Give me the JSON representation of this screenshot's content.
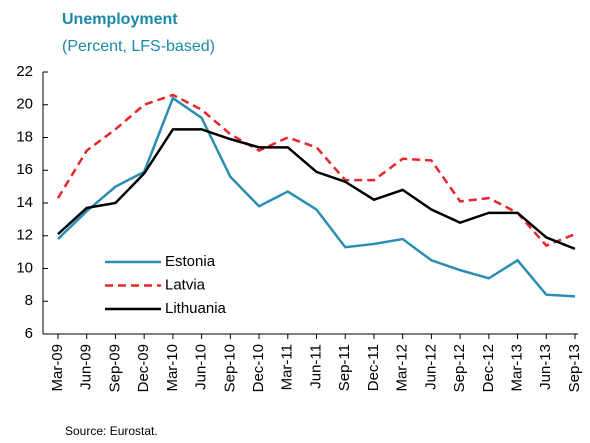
{
  "chart_data": {
    "type": "line",
    "title": "Unemployment",
    "subtitle": "(Percent, LFS-based)",
    "source": "Source: Eurostat.",
    "categories": [
      "Mar-09",
      "Jun-09",
      "Sep-09",
      "Dec-09",
      "Mar-10",
      "Jun-10",
      "Sep-10",
      "Dec-10",
      "Mar-11",
      "Jun-11",
      "Sep-11",
      "Dec-11",
      "Mar-12",
      "Jun-12",
      "Sep-12",
      "Dec-12",
      "Mar-13",
      "Jun-13",
      "Sep-13"
    ],
    "series": [
      {
        "name": "Estonia",
        "color": "#2a8eb2",
        "dash": false,
        "values": [
          11.8,
          13.5,
          15.0,
          15.9,
          20.4,
          19.2,
          15.6,
          13.8,
          14.7,
          13.6,
          11.3,
          11.5,
          11.8,
          10.5,
          9.9,
          9.4,
          10.5,
          8.4,
          8.3
        ]
      },
      {
        "name": "Latvia",
        "color": "#e8262a",
        "dash": true,
        "values": [
          14.3,
          17.2,
          18.5,
          20.0,
          20.6,
          19.7,
          18.2,
          17.2,
          18.0,
          17.4,
          15.4,
          15.4,
          16.7,
          16.6,
          14.1,
          14.3,
          13.4,
          11.4,
          12.1
        ]
      },
      {
        "name": "Lithuania",
        "color": "#000000",
        "dash": false,
        "values": [
          12.1,
          13.7,
          14.0,
          15.8,
          18.5,
          18.5,
          17.9,
          17.4,
          17.4,
          15.9,
          15.3,
          14.2,
          14.8,
          13.6,
          12.8,
          13.4,
          13.4,
          11.9,
          11.2
        ]
      }
    ],
    "ylim": [
      6,
      22
    ],
    "yticks": [
      6,
      8,
      10,
      12,
      14,
      16,
      18,
      20,
      22
    ],
    "grid": false,
    "legend": "lower-left"
  }
}
